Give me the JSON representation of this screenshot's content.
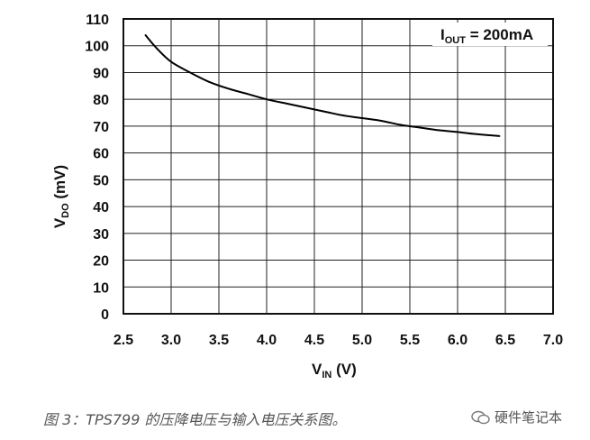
{
  "chart_data": {
    "type": "line",
    "annotation": {
      "main": "I",
      "sub": "OUT",
      "rest": " = 200mA"
    },
    "xlabel": {
      "main": "V",
      "sub": "IN",
      "rest": " (V)"
    },
    "ylabel": {
      "main": "V",
      "sub": "DO",
      "rest": " (mV)"
    },
    "xlim": [
      2.5,
      7.0
    ],
    "ylim": [
      0,
      110
    ],
    "xticks": [
      "2.5",
      "3.0",
      "3.5",
      "4.0",
      "4.5",
      "5.0",
      "5.5",
      "6.0",
      "6.5",
      "7.0"
    ],
    "yticks": [
      "0",
      "10",
      "20",
      "30",
      "40",
      "50",
      "60",
      "70",
      "80",
      "90",
      "100",
      "110"
    ],
    "grid": true,
    "series": [
      {
        "color": "#000000",
        "x": [
          2.73,
          2.85,
          3.0,
          3.2,
          3.4,
          3.6,
          3.8,
          4.0,
          4.2,
          4.4,
          4.6,
          4.8,
          5.0,
          5.2,
          5.4,
          5.6,
          5.8,
          6.0,
          6.2,
          6.44
        ],
        "y": [
          104,
          99,
          94,
          90,
          86.5,
          84,
          82,
          80,
          78.5,
          77,
          75.5,
          74,
          73,
          72,
          70.5,
          69.5,
          68.5,
          67.8,
          67,
          66.3
        ]
      }
    ]
  },
  "caption": "图 3：TPS799 的压降电压与输入电压关系图。",
  "watermark": "硬件笔记本"
}
